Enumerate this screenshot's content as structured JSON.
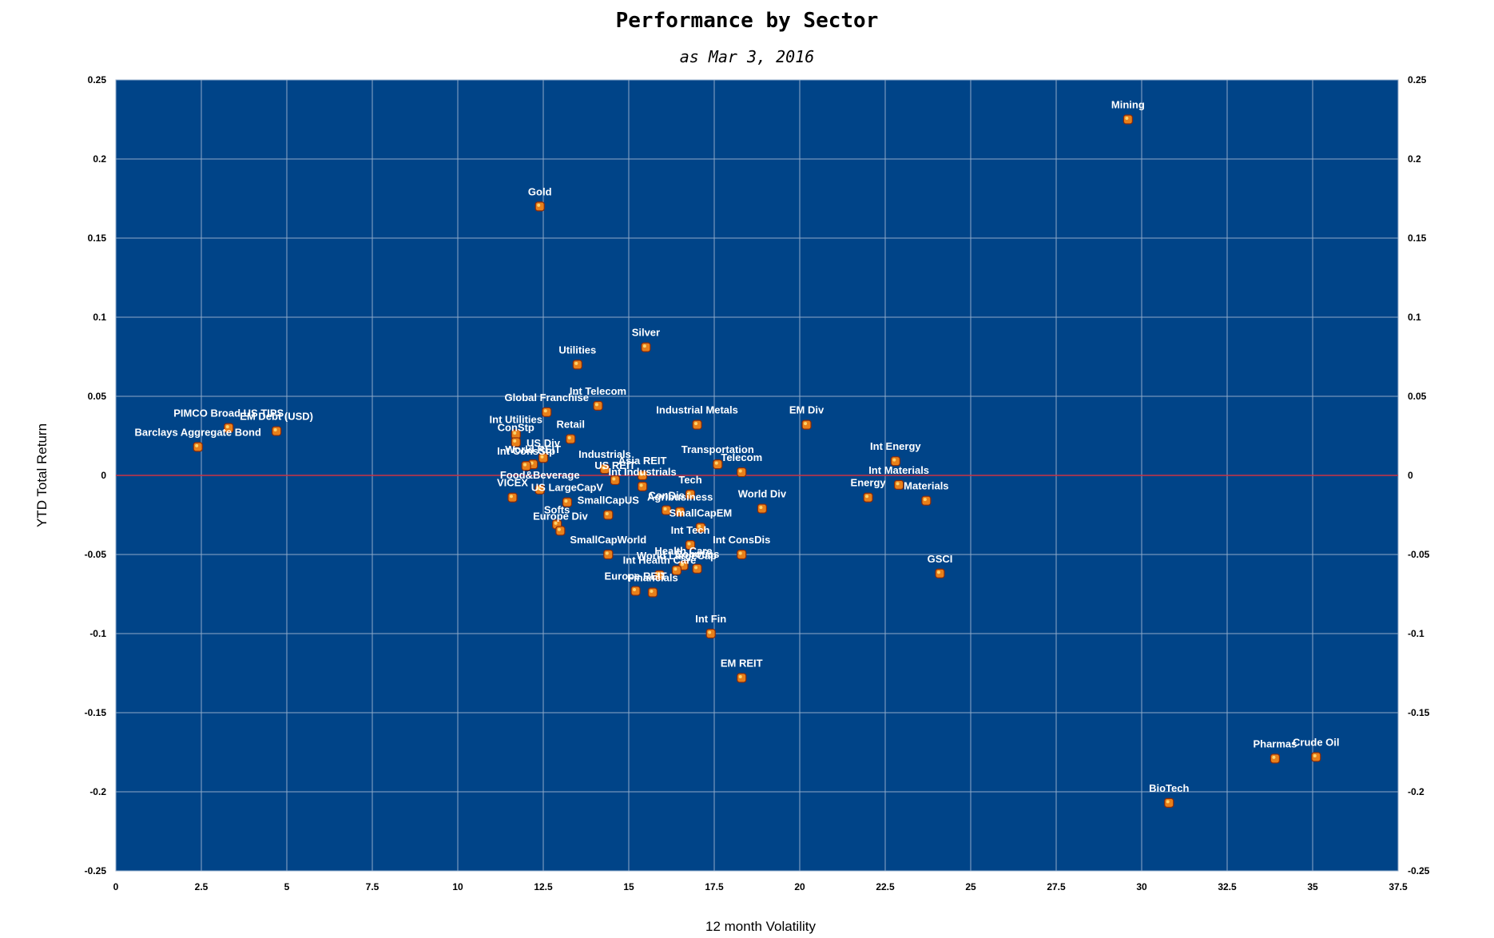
{
  "chart_data": {
    "type": "scatter",
    "title": "Performance by Sector",
    "subtitle": "as Mar 3, 2016",
    "xlabel": "12 month Volatility",
    "ylabel": "YTD Total Return",
    "xlim": [
      0,
      37.5
    ],
    "ylim": [
      -0.25,
      0.25
    ],
    "x_ticks": [
      "0",
      "2.5",
      "5",
      "7.5",
      "10",
      "12.5",
      "15",
      "17.5",
      "20",
      "22.5",
      "25",
      "27.5",
      "30",
      "32.5",
      "35",
      "37.5"
    ],
    "y_ticks": [
      "0.25",
      "0.2",
      "0.15",
      "0.1",
      "0.05",
      "0",
      "-0.05",
      "-0.1",
      "-0.15",
      "-0.2",
      "-0.25"
    ],
    "grid": true,
    "secondary_y_axis": true,
    "colors": {
      "plot_background": "#004488",
      "grid": "#8fa9c8",
      "zero_line": "#cc3344",
      "marker": "#e8801a",
      "label": "#ffffff"
    },
    "points": [
      {
        "label": "Mining",
        "x": 29.6,
        "y": 0.225
      },
      {
        "label": "Gold",
        "x": 12.4,
        "y": 0.17
      },
      {
        "label": "Silver",
        "x": 15.5,
        "y": 0.081
      },
      {
        "label": "Utilities",
        "x": 13.5,
        "y": 0.07
      },
      {
        "label": "Int Telecom",
        "x": 14.1,
        "y": 0.044
      },
      {
        "label": "Global Franchise",
        "x": 12.6,
        "y": 0.04
      },
      {
        "label": "Int Utilities",
        "x": 11.7,
        "y": 0.026
      },
      {
        "label": "PIMCO Broad US TIPS",
        "x": 3.3,
        "y": 0.03
      },
      {
        "label": "EM Debt (USD)",
        "x": 4.7,
        "y": 0.028
      },
      {
        "label": "Barclays Aggregate Bond",
        "x": 2.4,
        "y": 0.018
      },
      {
        "label": "ConStp",
        "x": 11.7,
        "y": 0.021
      },
      {
        "label": "Retail",
        "x": 13.3,
        "y": 0.023
      },
      {
        "label": "US Div",
        "x": 12.5,
        "y": 0.011
      },
      {
        "label": "World REIT",
        "x": 12.2,
        "y": 0.007
      },
      {
        "label": "Industrials",
        "x": 14.3,
        "y": 0.004
      },
      {
        "label": "Int ConsStp",
        "x": 12.0,
        "y": 0.006
      },
      {
        "label": "Industrial Metals",
        "x": 17.0,
        "y": 0.032
      },
      {
        "label": "Transportation",
        "x": 17.6,
        "y": 0.007
      },
      {
        "label": "EM Div",
        "x": 20.2,
        "y": 0.032
      },
      {
        "label": "Telecom",
        "x": 18.3,
        "y": 0.002
      },
      {
        "label": "Asia REIT",
        "x": 15.4,
        "y": 0.0
      },
      {
        "label": "US REIT",
        "x": 14.6,
        "y": -0.003
      },
      {
        "label": "Int Industrials",
        "x": 15.4,
        "y": -0.007
      },
      {
        "label": "Food&Beverage",
        "x": 12.4,
        "y": -0.009
      },
      {
        "label": "VICEX",
        "x": 11.6,
        "y": -0.014
      },
      {
        "label": "US LargeCapV",
        "x": 13.2,
        "y": -0.017
      },
      {
        "label": "Tech",
        "x": 16.8,
        "y": -0.012
      },
      {
        "label": "ConDis",
        "x": 16.1,
        "y": -0.022
      },
      {
        "label": "Agribusiness",
        "x": 16.5,
        "y": -0.023
      },
      {
        "label": "World Div",
        "x": 18.9,
        "y": -0.021
      },
      {
        "label": "Energy",
        "x": 22.0,
        "y": -0.014
      },
      {
        "label": "Int Energy",
        "x": 22.8,
        "y": 0.009
      },
      {
        "label": "Int Materials",
        "x": 22.9,
        "y": -0.006
      },
      {
        "label": "Materials",
        "x": 23.7,
        "y": -0.016
      },
      {
        "label": "Softs",
        "x": 12.9,
        "y": -0.031
      },
      {
        "label": "Europe Div",
        "x": 13.0,
        "y": -0.035
      },
      {
        "label": "SmallCapUS",
        "x": 14.4,
        "y": -0.025
      },
      {
        "label": "SmallCapEM",
        "x": 17.1,
        "y": -0.033
      },
      {
        "label": "SmallCapWorld",
        "x": 14.4,
        "y": -0.05
      },
      {
        "label": "Int Tech",
        "x": 16.8,
        "y": -0.044
      },
      {
        "label": "Int ConsDis",
        "x": 18.3,
        "y": -0.05
      },
      {
        "label": "Health Care",
        "x": 16.6,
        "y": -0.057
      },
      {
        "label": "Robotics",
        "x": 17.0,
        "y": -0.059
      },
      {
        "label": "World LargeCap",
        "x": 16.4,
        "y": -0.06
      },
      {
        "label": "Int Health Care",
        "x": 15.9,
        "y": -0.063
      },
      {
        "label": "Financials",
        "x": 15.7,
        "y": -0.074
      },
      {
        "label": "Europe REIT",
        "x": 15.2,
        "y": -0.073
      },
      {
        "label": "GSCI",
        "x": 24.1,
        "y": -0.062
      },
      {
        "label": "Int Fin",
        "x": 17.4,
        "y": -0.1
      },
      {
        "label": "EM REIT",
        "x": 18.3,
        "y": -0.128
      },
      {
        "label": "Crude Oil",
        "x": 35.1,
        "y": -0.178
      },
      {
        "label": "Pharmas",
        "x": 33.9,
        "y": -0.179
      },
      {
        "label": "BioTech",
        "x": 30.8,
        "y": -0.207
      }
    ]
  }
}
